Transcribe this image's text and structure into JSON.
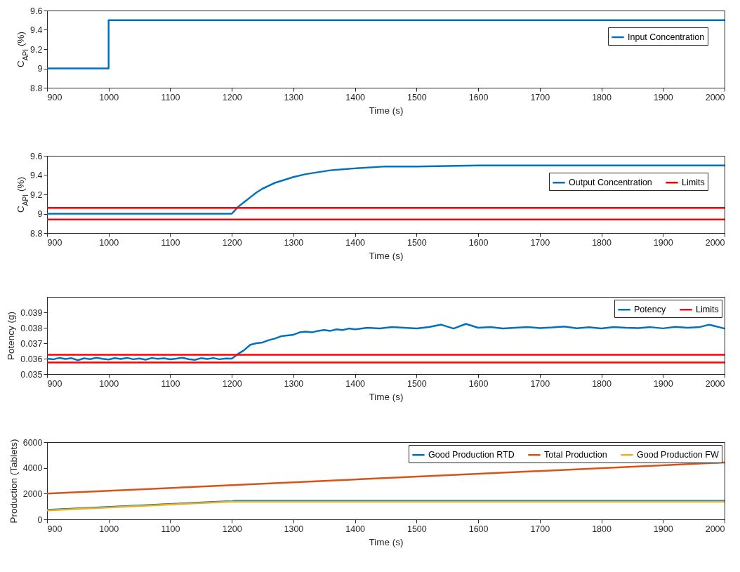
{
  "chart_data": [
    {
      "type": "line",
      "xlabel": "Time (s)",
      "ylabel": "C$_{API}$ (%)",
      "xlim": [
        900,
        2000
      ],
      "xticks": [
        900,
        1000,
        1100,
        1200,
        1300,
        1400,
        1500,
        1600,
        1700,
        1800,
        1900,
        2000
      ],
      "ylim": [
        8.8,
        9.6
      ],
      "yticks": [
        8.8,
        9,
        9.2,
        9.4,
        9.6
      ],
      "legend": "right",
      "series": [
        {
          "name": "Input Concentration",
          "color": "#0072bd",
          "x": [
            900,
            1000,
            1000,
            2000
          ],
          "values": [
            9,
            9,
            9.5,
            9.5
          ]
        }
      ]
    },
    {
      "type": "line",
      "xlabel": "Time (s)",
      "ylabel": "C$_{API}$ (%)",
      "xlim": [
        900,
        2000
      ],
      "xticks": [
        900,
        1000,
        1100,
        1200,
        1300,
        1400,
        1500,
        1600,
        1700,
        1800,
        1900,
        2000
      ],
      "ylim": [
        8.8,
        9.6
      ],
      "yticks": [
        8.8,
        9,
        9.2,
        9.4,
        9.6
      ],
      "legend": "right",
      "series": [
        {
          "name": "Output Concentration",
          "color": "#0072bd",
          "x": [
            900,
            1000,
            1100,
            1200,
            1210,
            1220,
            1230,
            1240,
            1250,
            1260,
            1270,
            1280,
            1290,
            1300,
            1320,
            1340,
            1360,
            1380,
            1400,
            1450,
            1500,
            1600,
            1700,
            1800,
            1900,
            2000
          ],
          "values": [
            9,
            9,
            9,
            9,
            9.07,
            9.12,
            9.17,
            9.22,
            9.26,
            9.29,
            9.32,
            9.34,
            9.36,
            9.38,
            9.41,
            9.43,
            9.45,
            9.46,
            9.47,
            9.49,
            9.49,
            9.5,
            9.5,
            9.5,
            9.5,
            9.5
          ]
        },
        {
          "name": "Limits",
          "color": "#ff0000",
          "x": [
            900,
            2000
          ],
          "values": [
            9.06,
            9.06
          ]
        },
        {
          "color": "#ff0000",
          "x": [
            900,
            2000
          ],
          "values": [
            8.94,
            8.94
          ]
        }
      ]
    },
    {
      "type": "line",
      "xlabel": "Time (s)",
      "ylabel": "Potency (g)",
      "xlim": [
        900,
        2000
      ],
      "xticks": [
        900,
        1000,
        1100,
        1200,
        1300,
        1400,
        1500,
        1600,
        1700,
        1800,
        1900,
        2000
      ],
      "ylim": [
        0.035,
        0.04
      ],
      "yticks": [
        0.035,
        0.036,
        0.037,
        0.038,
        0.039
      ],
      "legend": "top right",
      "series": [
        {
          "name": "Potency",
          "color": "#0072bd",
          "x": [
            900,
            910,
            920,
            930,
            940,
            950,
            960,
            970,
            980,
            990,
            1000,
            1010,
            1020,
            1030,
            1040,
            1050,
            1060,
            1070,
            1080,
            1090,
            1100,
            1110,
            1120,
            1130,
            1140,
            1150,
            1160,
            1170,
            1180,
            1190,
            1200,
            1210,
            1220,
            1230,
            1240,
            1250,
            1260,
            1270,
            1280,
            1290,
            1300,
            1310,
            1320,
            1330,
            1340,
            1350,
            1360,
            1370,
            1380,
            1390,
            1400,
            1420,
            1440,
            1460,
            1480,
            1500,
            1520,
            1540,
            1560,
            1580,
            1600,
            1620,
            1640,
            1660,
            1680,
            1700,
            1720,
            1740,
            1760,
            1780,
            1800,
            1820,
            1840,
            1860,
            1880,
            1900,
            1920,
            1940,
            1960,
            1975,
            1990,
            2000
          ],
          "values": [
            0.036,
            0.03595,
            0.03605,
            0.03598,
            0.03603,
            0.0359,
            0.03602,
            0.03597,
            0.03606,
            0.03599,
            0.03594,
            0.03603,
            0.03598,
            0.03605,
            0.03596,
            0.03601,
            0.03593,
            0.03604,
            0.03599,
            0.03602,
            0.03595,
            0.036,
            0.03606,
            0.03597,
            0.03592,
            0.03603,
            0.03598,
            0.03604,
            0.03596,
            0.03601,
            0.036,
            0.0363,
            0.03655,
            0.0369,
            0.037,
            0.03705,
            0.0372,
            0.0373,
            0.03745,
            0.0375,
            0.03755,
            0.0377,
            0.03775,
            0.0377,
            0.0378,
            0.03785,
            0.0378,
            0.0379,
            0.03785,
            0.03795,
            0.0379,
            0.038,
            0.03795,
            0.03805,
            0.038,
            0.03795,
            0.03805,
            0.0382,
            0.03795,
            0.03825,
            0.038,
            0.03805,
            0.03795,
            0.038,
            0.03805,
            0.03798,
            0.03802,
            0.03808,
            0.03797,
            0.03803,
            0.03795,
            0.03805,
            0.038,
            0.03798,
            0.03804,
            0.03796,
            0.03806,
            0.038,
            0.03805,
            0.0382,
            0.03805,
            0.03795
          ]
        },
        {
          "name": "Limits",
          "color": "#ff0000",
          "x": [
            900,
            2000
          ],
          "values": [
            0.03625,
            0.03625
          ]
        },
        {
          "color": "#ff0000",
          "x": [
            900,
            2000
          ],
          "values": [
            0.03575,
            0.03575
          ]
        }
      ]
    },
    {
      "type": "line",
      "xlabel": "Time (s)",
      "ylabel": "Production (Tablets)",
      "xlim": [
        900,
        2000
      ],
      "xticks": [
        900,
        1000,
        1100,
        1200,
        1300,
        1400,
        1500,
        1600,
        1700,
        1800,
        1900,
        2000
      ],
      "ylim": [
        0,
        6000
      ],
      "yticks": [
        0,
        2000,
        4000,
        6000
      ],
      "legend": "top right",
      "series": [
        {
          "name": "Good Production RTD",
          "color": "#0072bd",
          "x": [
            900,
            1200,
            1205,
            2000
          ],
          "values": [
            740,
            1420,
            1440,
            1440
          ]
        },
        {
          "name": "Total Production",
          "color": "#d95319",
          "x": [
            900,
            2000
          ],
          "values": [
            2000,
            4420
          ]
        },
        {
          "name": "Good Production FW",
          "color": "#edb120",
          "x": [
            900,
            1200,
            1205,
            2000
          ],
          "values": [
            700,
            1380,
            1380,
            1380
          ]
        }
      ]
    }
  ]
}
